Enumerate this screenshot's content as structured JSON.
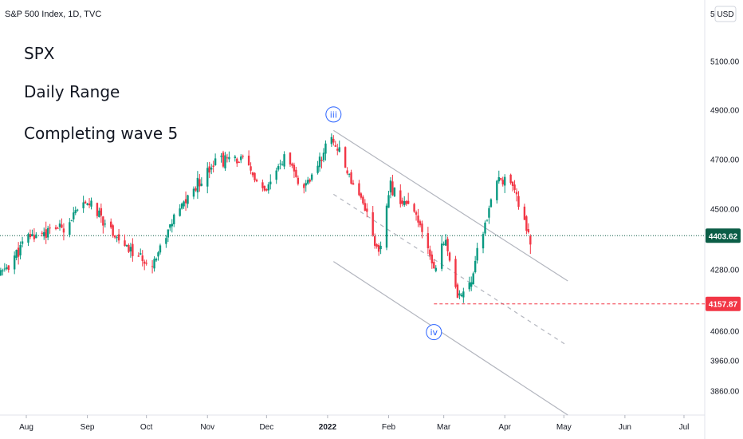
{
  "header": {
    "symbol_title": "S&P 500 Index, 1D, TVC",
    "currency_button": "USD",
    "top_price_partial": "5"
  },
  "annotations": [
    "SPX",
    "Daily Range",
    "Completing wave 5"
  ],
  "colors": {
    "up": "#089981",
    "down": "#f23645",
    "wave_label": "#2962ff",
    "channel": "#b2b5be",
    "current_price_bg": "#0b5d46",
    "support_line": "#f23645"
  },
  "chart_data": {
    "type": "candlestick",
    "title": "S&P 500 Index, 1D, TVC",
    "y_axis": {
      "side": "right",
      "ticks": [
        5100,
        4900,
        4700,
        4500,
        4280,
        4060,
        3960,
        3860
      ],
      "tick_labels": [
        "5100.00",
        "4900.00",
        "4700.00",
        "4500.00",
        "4280.00",
        "4060.00",
        "3960.00",
        "3860.00"
      ]
    },
    "x_axis": {
      "tick_labels": [
        "Aug",
        "Sep",
        "Oct",
        "Nov",
        "Dec",
        "2022",
        "Feb",
        "Mar",
        "Apr",
        "May",
        "Jun",
        "Jul"
      ],
      "tick_dates": [
        "2021-08-01",
        "2021-09-01",
        "2021-10-01",
        "2021-11-01",
        "2021-12-01",
        "2022-01-01",
        "2022-02-01",
        "2022-03-01",
        "2022-04-01",
        "2022-05-01",
        "2022-06-01",
        "2022-07-01"
      ]
    },
    "keypoints": [
      {
        "date": "2021-07-19",
        "close": 4260
      },
      {
        "date": "2021-08-02",
        "close": 4400
      },
      {
        "date": "2021-08-20",
        "close": 4440
      },
      {
        "date": "2021-09-02",
        "close": 4530
      },
      {
        "date": "2021-09-20",
        "close": 4360
      },
      {
        "date": "2021-10-04",
        "close": 4300
      },
      {
        "date": "2021-10-15",
        "close": 4470
      },
      {
        "date": "2021-11-05",
        "close": 4700
      },
      {
        "date": "2021-11-19",
        "close": 4700
      },
      {
        "date": "2021-11-30",
        "close": 4560
      },
      {
        "date": "2021-12-10",
        "close": 4710
      },
      {
        "date": "2021-12-20",
        "close": 4570
      },
      {
        "date": "2022-01-03",
        "close": 4796
      },
      {
        "date": "2022-01-10",
        "close": 4670
      },
      {
        "date": "2022-01-19",
        "close": 4530
      },
      {
        "date": "2022-01-27",
        "close": 4330
      },
      {
        "date": "2022-02-02",
        "close": 4590
      },
      {
        "date": "2022-02-15",
        "close": 4470
      },
      {
        "date": "2022-02-24",
        "close": 4290
      },
      {
        "date": "2022-03-02",
        "close": 4390
      },
      {
        "date": "2022-03-08",
        "close": 4170
      },
      {
        "date": "2022-03-15",
        "close": 4260
      },
      {
        "date": "2022-03-29",
        "close": 4630
      },
      {
        "date": "2022-04-05",
        "close": 4580
      },
      {
        "date": "2022-04-14",
        "close": 4400
      }
    ],
    "wave_labels": [
      {
        "label": "iii",
        "date": "2022-01-04",
        "price": 4818
      },
      {
        "label": "iv",
        "date": "2022-02-24",
        "price": 4114
      }
    ],
    "channel": {
      "upper": {
        "start": {
          "date": "2022-01-04",
          "price": 4818
        },
        "end": {
          "date": "2022-05-03",
          "price": 4240
        }
      },
      "middle": {
        "start": {
          "date": "2022-01-04",
          "price": 4560
        },
        "end": {
          "date": "2022-05-03",
          "price": 4010
        }
      },
      "lower": {
        "start": {
          "date": "2022-01-04",
          "price": 4310
        },
        "end": {
          "date": "2022-05-03",
          "price": 3780
        }
      }
    },
    "support_level": {
      "price": 4157.87,
      "label": "4157.87",
      "start_date": "2022-02-24"
    },
    "current_price": {
      "price": 4403.62,
      "label": "4403.62"
    },
    "grid": false,
    "legend": "none"
  }
}
